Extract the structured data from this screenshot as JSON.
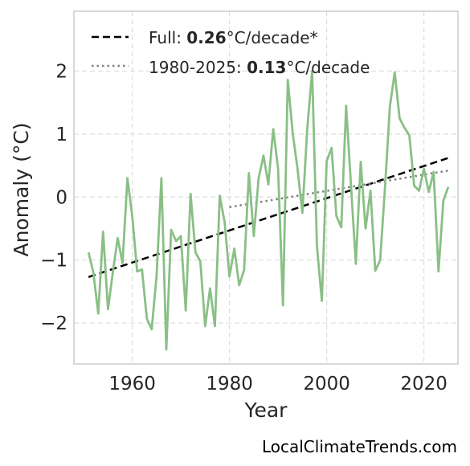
{
  "colors": {
    "series": "#8abf86",
    "full_trend": "#000000",
    "recent_trend": "#808080",
    "grid": "#dedede",
    "frame": "#cccccc"
  },
  "watermark": "LocalClimateTrends.com",
  "legend": {
    "full": {
      "prefix": "Full: ",
      "value": "0.26",
      "suffix": "°C/decade*"
    },
    "recent": {
      "prefix": "1980-2025: ",
      "value": "0.13",
      "suffix": "°C/decade"
    }
  },
  "chart_data": {
    "type": "line",
    "xlabel": "Year",
    "ylabel": "Anomaly (°C)",
    "xlim": [
      1948,
      2027
    ],
    "ylim": [
      -2.65,
      2.95
    ],
    "xticks": [
      1960,
      1980,
      2000,
      2020
    ],
    "yticks": [
      -2,
      -1,
      0,
      1,
      2
    ],
    "ytick_labels": [
      "−2",
      "−1",
      "0",
      "1",
      "2"
    ],
    "grid": true,
    "legend_position": "top-left",
    "series": [
      {
        "x": [
          1951,
          1952,
          1953,
          1954,
          1955,
          1956,
          1957,
          1958,
          1959,
          1960,
          1961,
          1962,
          1963,
          1964,
          1965,
          1966,
          1967,
          1968,
          1969,
          1970,
          1971,
          1972,
          1973,
          1974,
          1975,
          1976,
          1977,
          1978,
          1979,
          1980,
          1981,
          1982,
          1983,
          1984,
          1985,
          1986,
          1987,
          1988,
          1989,
          1990,
          1991,
          1992,
          1993,
          1994,
          1995,
          1996,
          1997,
          1998,
          1999,
          2000,
          2001,
          2002,
          2003,
          2004,
          2005,
          2006,
          2007,
          2008,
          2009,
          2010,
          2011,
          2012,
          2013,
          2014,
          2015,
          2016,
          2017,
          2018,
          2019,
          2020,
          2021,
          2022,
          2023,
          2024,
          2025
        ],
        "values": [
          -0.88,
          -1.2,
          -1.85,
          -0.55,
          -1.78,
          -1.2,
          -0.65,
          -1.05,
          0.3,
          -0.3,
          -1.18,
          -1.15,
          -1.93,
          -2.1,
          -1.25,
          0.3,
          -2.42,
          -0.52,
          -0.7,
          -0.62,
          -1.8,
          0.05,
          -0.88,
          -1.02,
          -2.05,
          -1.45,
          -2.05,
          0.02,
          -0.4,
          -1.26,
          -0.82,
          -1.4,
          -1.16,
          0.38,
          -0.62,
          0.3,
          0.66,
          0.2,
          1.08,
          0.45,
          -1.72,
          1.86,
          1.02,
          0.45,
          -0.25,
          1.08,
          2.0,
          -0.78,
          -1.65,
          0.57,
          0.78,
          -0.3,
          -0.48,
          1.45,
          0.18,
          -1.06,
          0.56,
          -0.5,
          0.1,
          -1.17,
          -1.0,
          0.15,
          1.44,
          1.98,
          1.25,
          1.1,
          0.98,
          0.18,
          0.1,
          0.45,
          0.08,
          0.4,
          -1.18,
          -0.06,
          0.16
        ]
      }
    ],
    "trends": [
      {
        "kind": "full",
        "style": "dashed",
        "x": [
          1951,
          2025
        ],
        "y": [
          -1.27,
          0.62
        ]
      },
      {
        "kind": "1980-2025",
        "style": "dotted",
        "x": [
          1980,
          2025
        ],
        "y": [
          -0.16,
          0.42
        ]
      }
    ]
  }
}
